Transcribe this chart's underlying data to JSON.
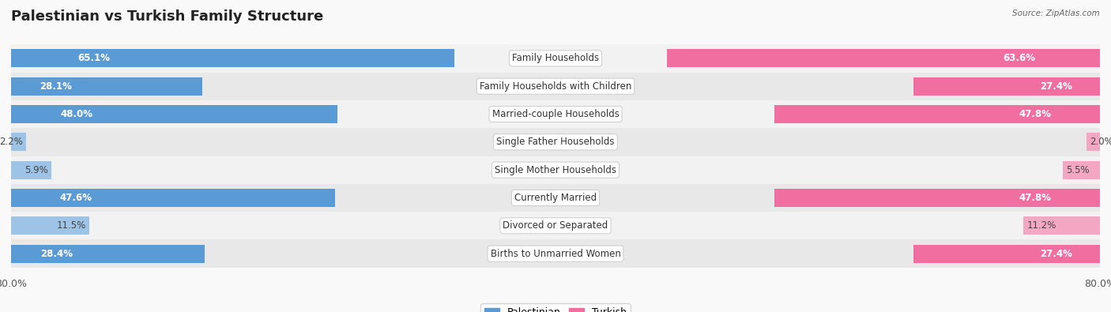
{
  "title": "Palestinian vs Turkish Family Structure",
  "source": "Source: ZipAtlas.com",
  "categories": [
    "Family Households",
    "Family Households with Children",
    "Married-couple Households",
    "Single Father Households",
    "Single Mother Households",
    "Currently Married",
    "Divorced or Separated",
    "Births to Unmarried Women"
  ],
  "palestinian_values": [
    65.1,
    28.1,
    48.0,
    2.2,
    5.9,
    47.6,
    11.5,
    28.4
  ],
  "turkish_values": [
    63.6,
    27.4,
    47.8,
    2.0,
    5.5,
    47.8,
    11.2,
    27.4
  ],
  "palestinian_labels": [
    "65.1%",
    "28.1%",
    "48.0%",
    "2.2%",
    "5.9%",
    "47.6%",
    "11.5%",
    "28.4%"
  ],
  "turkish_labels": [
    "63.6%",
    "27.4%",
    "47.8%",
    "2.0%",
    "5.5%",
    "47.8%",
    "11.2%",
    "27.4%"
  ],
  "max_value": 80.0,
  "palestinian_color_strong": "#5b9bd5",
  "palestinian_color_light": "#9dc3e6",
  "turkish_color_strong": "#f06fa0",
  "turkish_color_light": "#f4a7c3",
  "row_bg_odd": "#f2f2f2",
  "row_bg_even": "#e8e8e8",
  "label_color_white": "#ffffff",
  "label_color_dark": "#444444",
  "title_fontsize": 13,
  "label_fontsize": 8.5,
  "category_fontsize": 8.5,
  "legend_fontsize": 9,
  "axis_label_fontsize": 9,
  "strong_threshold": 15
}
